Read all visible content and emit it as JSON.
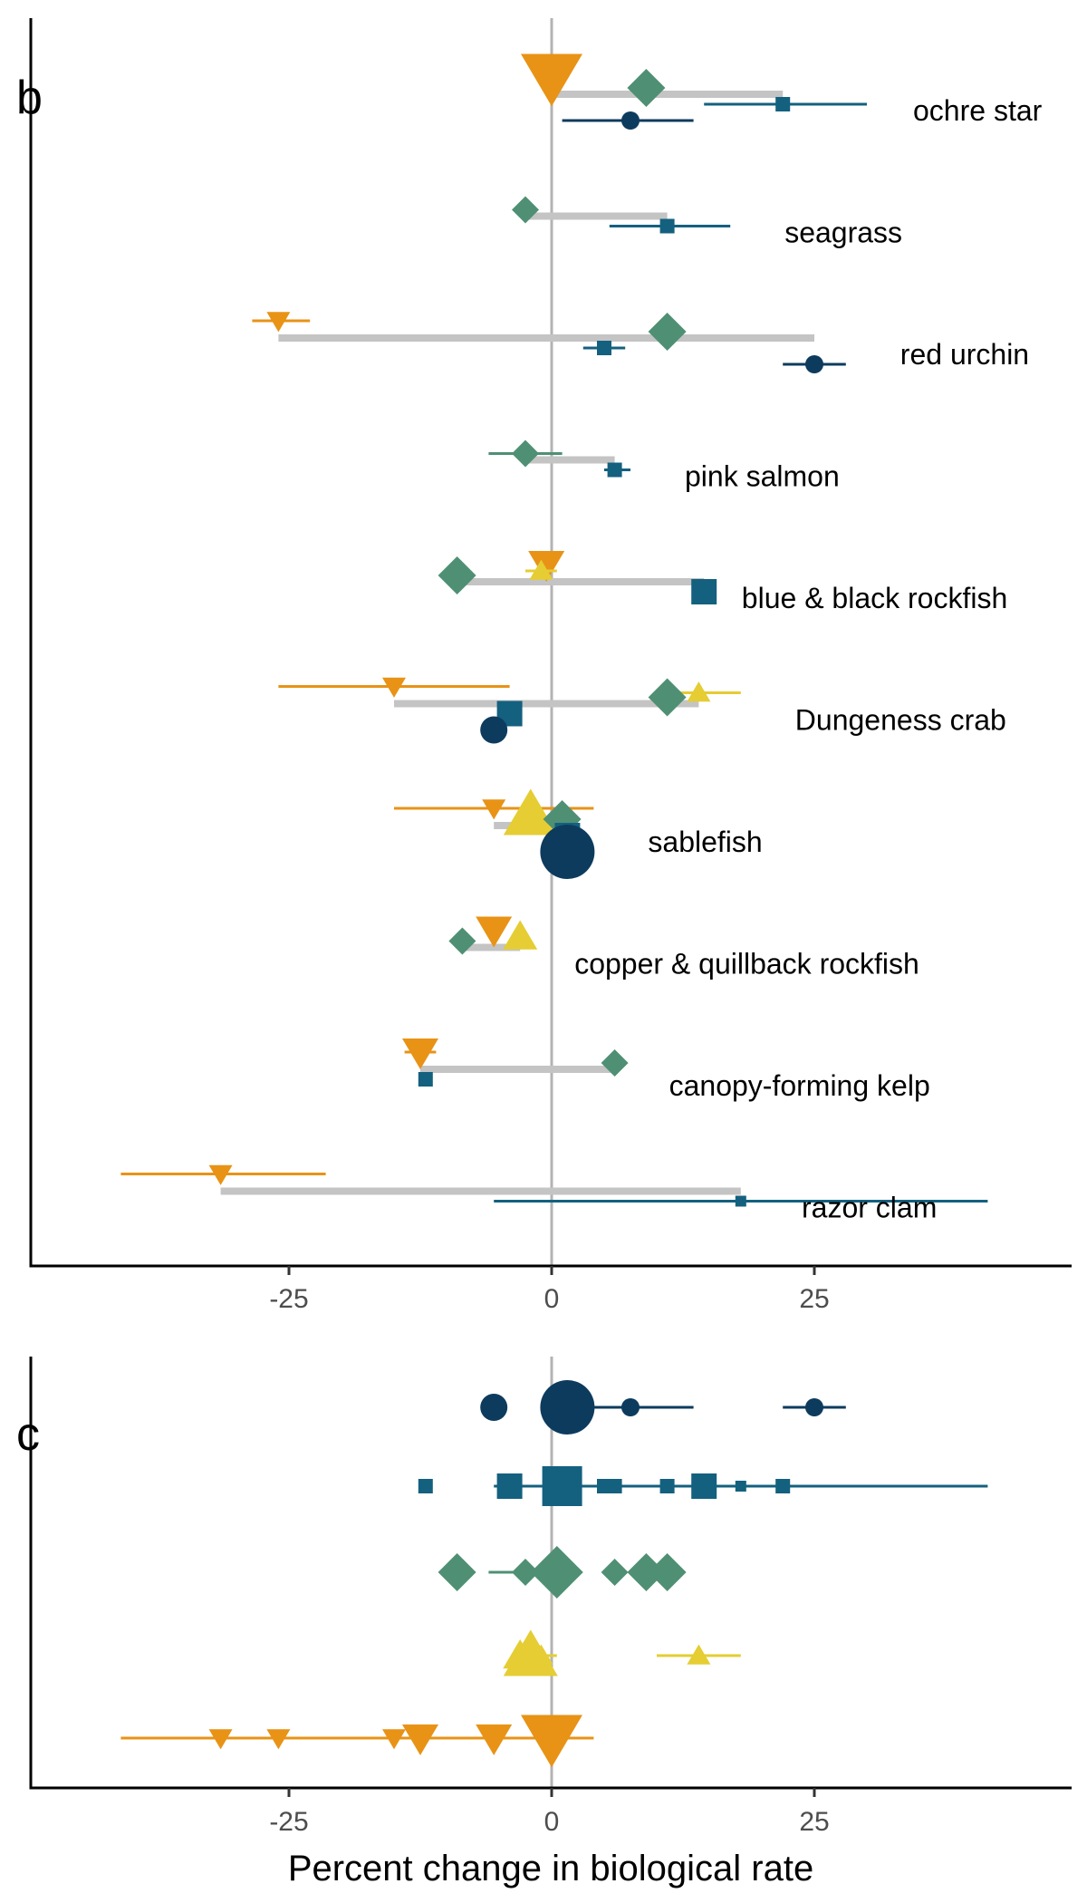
{
  "chart_data": [
    {
      "panel": "b",
      "type": "scatter",
      "xlim": [
        -50,
        50
      ],
      "x_ticks": [
        -25,
        0,
        25
      ],
      "x_tick_labels": [
        "-25",
        "0",
        "25"
      ],
      "zero_line": true,
      "species": [
        {
          "label": "ochre star",
          "range": [
            0,
            22
          ],
          "points": [
            {
              "model": "triangle",
              "x": 0,
              "size": "large"
            },
            {
              "model": "diamond",
              "x": 9,
              "size": "medium"
            },
            {
              "model": "square",
              "x": 22,
              "lo": 14.5,
              "hi": 30,
              "size": "small"
            },
            {
              "model": "circle",
              "x": 7.5,
              "lo": 1,
              "hi": 13.5,
              "size": "small"
            }
          ]
        },
        {
          "label": "seagrass",
          "range": [
            -2.5,
            11
          ],
          "points": [
            {
              "model": "diamond",
              "x": -2.5,
              "size": "small"
            },
            {
              "model": "square",
              "x": 11,
              "lo": 5.5,
              "hi": 17,
              "size": "small"
            }
          ]
        },
        {
          "label": "red urchin",
          "range": [
            -26,
            25
          ],
          "points": [
            {
              "model": "triangle",
              "x": -26,
              "lo": -28.5,
              "hi": -23,
              "size": "small"
            },
            {
              "model": "diamond",
              "x": 11,
              "size": "medium"
            },
            {
              "model": "square",
              "x": 5,
              "lo": 3,
              "hi": 7,
              "size": "small"
            },
            {
              "model": "circle",
              "x": 25,
              "lo": 22,
              "hi": 28,
              "size": "small"
            }
          ]
        },
        {
          "label": "pink salmon",
          "range": [
            -2.5,
            6
          ],
          "points": [
            {
              "model": "diamond",
              "x": -2.5,
              "lo": -6,
              "hi": 1,
              "size": "small"
            },
            {
              "model": "square",
              "x": 6,
              "lo": 5,
              "hi": 7.5,
              "size": "small"
            }
          ]
        },
        {
          "label": "blue & black rockfish",
          "range": [
            -9,
            14.5
          ],
          "points": [
            {
              "model": "triangle",
              "x": -0.5,
              "size": "medium"
            },
            {
              "model": "triangle_up",
              "x": -1,
              "lo": -2.5,
              "hi": 0.5,
              "size": "small"
            },
            {
              "model": "diamond",
              "x": -9,
              "size": "medium"
            },
            {
              "model": "square",
              "x": 14.5,
              "size": "medium"
            }
          ]
        },
        {
          "label": "Dungeness crab",
          "range": [
            -15,
            14
          ],
          "points": [
            {
              "model": "triangle",
              "x": -15,
              "lo": -26,
              "hi": -4,
              "size": "small"
            },
            {
              "model": "triangle_up",
              "x": 14,
              "lo": 10,
              "hi": 18,
              "size": "small"
            },
            {
              "model": "diamond",
              "x": 11,
              "size": "medium"
            },
            {
              "model": "square",
              "x": -4,
              "size": "medium"
            },
            {
              "model": "circle",
              "x": -5.5,
              "size": "medium"
            }
          ]
        },
        {
          "label": "sablefish",
          "range": [
            -5.5,
            2
          ],
          "points": [
            {
              "model": "triangle",
              "x": -5.5,
              "lo": -15,
              "hi": 4,
              "size": "small"
            },
            {
              "model": "triangle_up",
              "x": -2,
              "size": "large"
            },
            {
              "model": "diamond",
              "x": 1,
              "size": "medium"
            },
            {
              "model": "square",
              "x": 1.5,
              "size": "medium"
            },
            {
              "model": "circle",
              "x": 1.5,
              "size": "large"
            }
          ]
        },
        {
          "label": "copper & quillback rockfish",
          "range": [
            -8.5,
            -3
          ],
          "points": [
            {
              "model": "triangle",
              "x": -5.5,
              "size": "medium"
            },
            {
              "model": "triangle_up",
              "x": -3,
              "size": "medium"
            },
            {
              "model": "diamond",
              "x": -8.5,
              "size": "small"
            }
          ]
        },
        {
          "label": "canopy-forming kelp",
          "range": [
            -12.5,
            6
          ],
          "points": [
            {
              "model": "triangle",
              "x": -12.5,
              "lo": -14,
              "hi": -11,
              "size": "medium"
            },
            {
              "model": "diamond",
              "x": 6,
              "size": "small"
            },
            {
              "model": "square",
              "x": -12,
              "size": "small"
            }
          ]
        },
        {
          "label": "razor clam",
          "range": [
            -31.5,
            18
          ],
          "points": [
            {
              "model": "triangle",
              "x": -31.5,
              "lo": -41,
              "hi": -21.5,
              "size": "small"
            },
            {
              "model": "square",
              "x": 18,
              "lo": -5.5,
              "hi": 41.5,
              "size": "tiny"
            }
          ]
        }
      ]
    },
    {
      "panel": "c",
      "type": "scatter",
      "xlim": [
        -50,
        50
      ],
      "x_ticks": [
        -25,
        0,
        25
      ],
      "x_tick_labels": [
        "-25",
        "0",
        "25"
      ],
      "xlabel": "Percent change in biological rate",
      "zero_line": true,
      "rows": [
        {
          "model": "circle",
          "color": "#0d3b5e",
          "points": [
            {
              "x": -5.5,
              "size": "medium"
            },
            {
              "x": 1.5,
              "size": "large"
            },
            {
              "x": 7.5,
              "lo": 1,
              "hi": 13.5,
              "size": "small"
            },
            {
              "x": 25,
              "lo": 22,
              "hi": 28,
              "size": "small"
            }
          ]
        },
        {
          "model": "square",
          "color": "#14607f",
          "points": [
            {
              "x": -12,
              "size": "small"
            },
            {
              "x": -4,
              "size": "medium"
            },
            {
              "x": 1,
              "size": "large"
            },
            {
              "x": 5,
              "lo": 3,
              "hi": 7,
              "size": "small"
            },
            {
              "x": 6,
              "lo": 5,
              "hi": 7.5,
              "size": "small"
            },
            {
              "x": 11,
              "lo": 5.5,
              "hi": 17,
              "size": "small"
            },
            {
              "x": 14.5,
              "size": "medium"
            },
            {
              "x": 18,
              "lo": -5.5,
              "hi": 41.5,
              "size": "tiny"
            },
            {
              "x": 22,
              "lo": 14.5,
              "hi": 30,
              "size": "small"
            }
          ]
        },
        {
          "model": "diamond",
          "color": "#4f9074",
          "points": [
            {
              "x": -9,
              "size": "medium"
            },
            {
              "x": -2.5,
              "lo": -6,
              "hi": 1,
              "size": "small"
            },
            {
              "x": 0.5,
              "size": "large"
            },
            {
              "x": 6,
              "size": "small"
            },
            {
              "x": 9,
              "size": "medium"
            },
            {
              "x": 11,
              "size": "medium"
            }
          ]
        },
        {
          "model": "triangle_up",
          "color": "#e5cd33",
          "points": [
            {
              "x": -3,
              "size": "medium"
            },
            {
              "x": -2,
              "size": "large"
            },
            {
              "x": -1,
              "lo": -2.5,
              "hi": 0.5,
              "size": "small"
            },
            {
              "x": 14,
              "lo": 10,
              "hi": 18,
              "size": "small"
            }
          ]
        },
        {
          "model": "triangle",
          "color": "#e89316",
          "points": [
            {
              "x": -31.5,
              "lo": -41,
              "hi": -21.5,
              "size": "small"
            },
            {
              "x": -26,
              "lo": -28.5,
              "hi": -23,
              "size": "small"
            },
            {
              "x": -15,
              "lo": -26,
              "hi": -4,
              "size": "small"
            },
            {
              "x": -12.5,
              "lo": -14,
              "hi": -11,
              "size": "medium"
            },
            {
              "x": -5.5,
              "lo": -15,
              "hi": 4,
              "size": "medium"
            },
            {
              "x": 0,
              "size": "large"
            }
          ]
        }
      ]
    }
  ],
  "colors": {
    "circle": "#0d3b5e",
    "square": "#14607f",
    "diamond": "#4f9074",
    "triangle_up": "#e5cd33",
    "triangle": "#e89316",
    "range_bar": "#c4c4c4",
    "zero_line": "#b3b3b3"
  }
}
